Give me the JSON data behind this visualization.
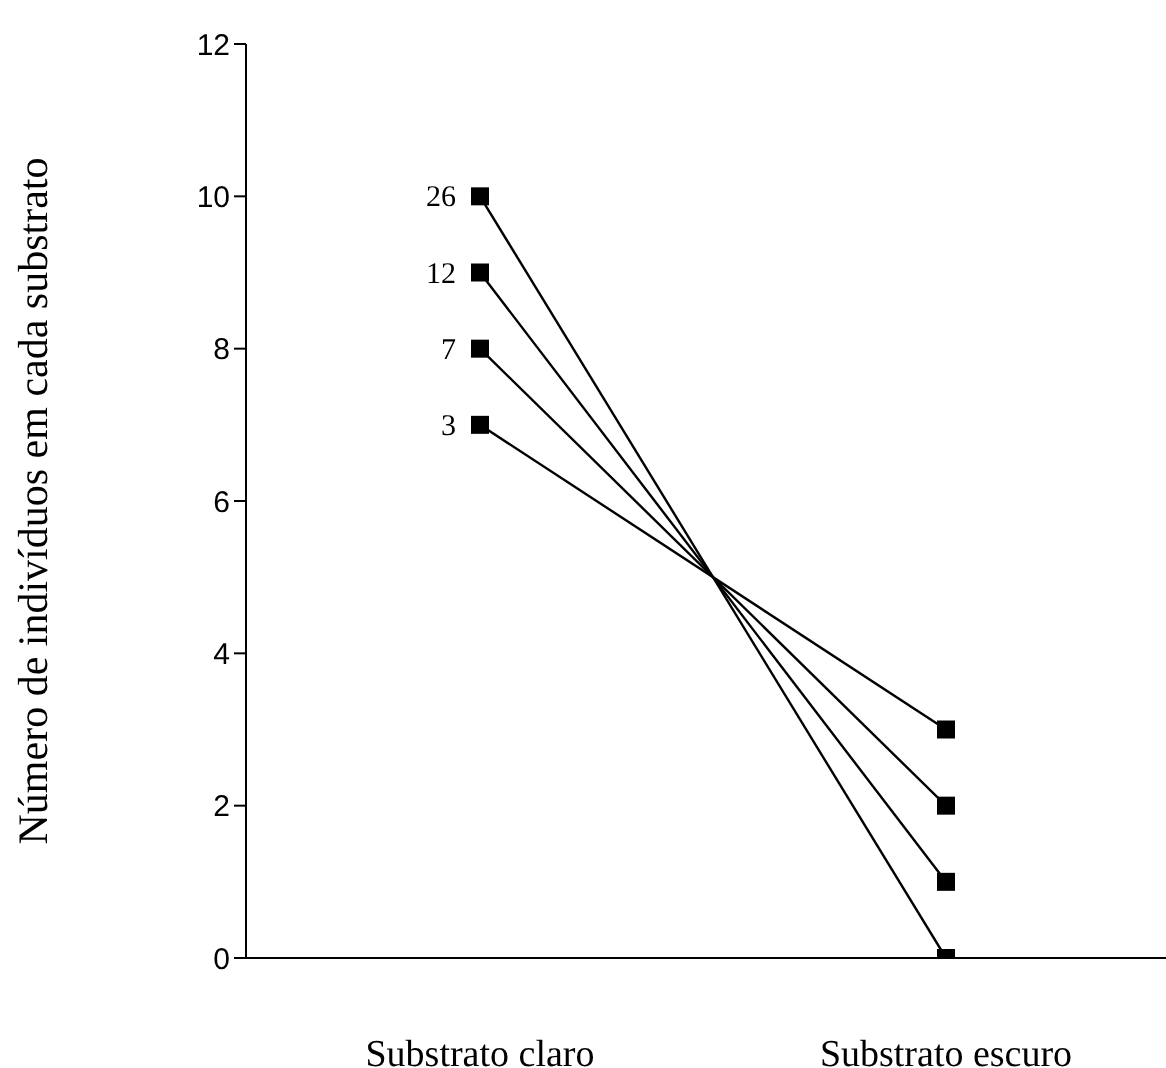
{
  "chart_data": {
    "type": "line",
    "ylabel": "Número de indivíduos em cada substrato",
    "categories": [
      "Substrato claro",
      "Substrato escuro"
    ],
    "series": [
      {
        "name": "26",
        "color": "#000000",
        "values": [
          10,
          0
        ]
      },
      {
        "name": "12",
        "color": "#000000",
        "values": [
          9,
          1
        ]
      },
      {
        "name": "7",
        "color": "#000000",
        "values": [
          8,
          2
        ]
      },
      {
        "name": "3",
        "color": "#000000",
        "values": [
          7,
          3
        ]
      }
    ],
    "ylim": [
      0,
      12
    ],
    "yticks": [
      0,
      2,
      4,
      6,
      8,
      10,
      12
    ],
    "marker": "square",
    "line_style": "solid",
    "grid": false,
    "legend": false
  }
}
